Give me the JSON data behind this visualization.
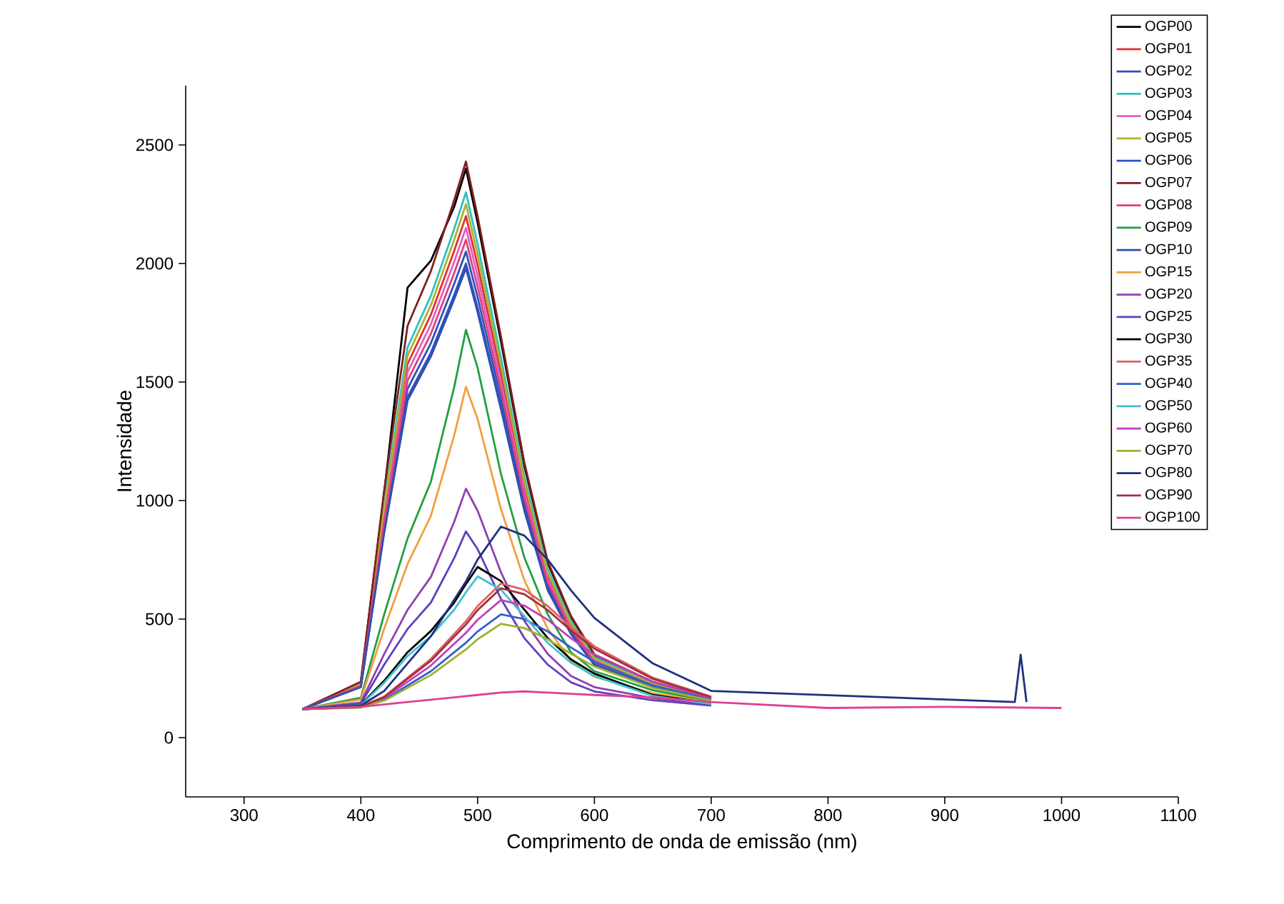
{
  "chart_data": {
    "type": "line",
    "xlabel": "Comprimento de onda de emissão (nm)",
    "ylabel": "Intensidade",
    "x": [
      350,
      400,
      420,
      440,
      460,
      480,
      490,
      500,
      520,
      540,
      560,
      580,
      600,
      650,
      700,
      800,
      900,
      960,
      965,
      970,
      1000
    ],
    "xlim": [
      250,
      1100
    ],
    "xticks": [
      300,
      400,
      500,
      600,
      700,
      800,
      900,
      1000,
      1100
    ],
    "ylim": [
      -250,
      2750
    ],
    "yticks": [
      0,
      500,
      1000,
      1500,
      2000,
      2500
    ],
    "legend": "right",
    "grid": false,
    "marker": "none",
    "series": [
      {
        "name": "OGP00",
        "color": "#000000",
        "values": [
          120,
          234,
          1032,
          1898,
          2012,
          2240,
          2400,
          2172,
          1670,
          1146,
          736,
          508,
          348,
          234,
          166,
          null,
          null,
          null,
          null,
          null,
          null
        ]
      },
      {
        "name": "OGP01",
        "color": "#e03030",
        "values": [
          120,
          224,
          952,
          1576,
          1784,
          2054,
          2200,
          1992,
          1534,
          1056,
          682,
          474,
          328,
          224,
          162,
          null,
          null,
          null,
          null,
          null,
          null
        ]
      },
      {
        "name": "OGP02",
        "color": "#3050c0",
        "values": [
          120,
          217,
          892,
          1471,
          1664,
          1915,
          2050,
          1857,
          1432,
          989,
          641,
          448,
          313,
          217,
          159,
          null,
          null,
          null,
          null,
          null,
          null
        ]
      },
      {
        "name": "OGP03",
        "color": "#30c0c0",
        "values": [
          120,
          229,
          992,
          1646,
          1864,
          2147,
          2300,
          2082,
          1602,
          1101,
          709,
          491,
          338,
          229,
          164,
          null,
          null,
          null,
          null,
          null,
          null
        ]
      },
      {
        "name": "OGP04",
        "color": "#e060c0",
        "values": [
          120,
          222,
          932,
          1541,
          1744,
          2008,
          2150,
          1947,
          1500,
          1034,
          668,
          465,
          323,
          222,
          161,
          null,
          null,
          null,
          null,
          null,
          null
        ]
      },
      {
        "name": "OGP05",
        "color": "#b0b030",
        "values": [
          120,
          227,
          972,
          1611,
          1824,
          2101,
          2250,
          2037,
          1568,
          1079,
          695,
          482,
          333,
          227,
          163,
          null,
          null,
          null,
          null,
          null,
          null
        ]
      },
      {
        "name": "OGP06",
        "color": "#3050c0",
        "values": [
          120,
          214,
          872,
          1436,
          1624,
          1868,
          2000,
          1812,
          1398,
          966,
          628,
          440,
          308,
          214,
          158,
          null,
          null,
          null,
          null,
          null,
          null
        ]
      },
      {
        "name": "OGP07",
        "color": "#802020",
        "values": [
          120,
          236,
          1044,
          1737,
          1968,
          2268,
          2430,
          2199,
          1691,
          1160,
          744,
          513,
          351,
          236,
          166,
          null,
          null,
          null,
          null,
          null,
          null
        ]
      },
      {
        "name": "OGP08",
        "color": "#e04080",
        "values": [
          120,
          219,
          912,
          1506,
          1704,
          1961,
          2100,
          1902,
          1466,
          1011,
          655,
          457,
          318,
          219,
          160,
          null,
          null,
          null,
          null,
          null,
          null
        ]
      },
      {
        "name": "OGP09",
        "color": "#20a040",
        "values": [
          120,
          168,
          520,
          840,
          1080,
          1480,
          1720,
          1560,
          1112,
          760,
          520,
          360,
          280,
          200,
          152,
          null,
          null,
          null,
          null,
          null,
          null
        ]
      },
      {
        "name": "OGP10",
        "color": "#3050b0",
        "values": [
          120,
          213,
          864,
          1422,
          1608,
          1850,
          1980,
          1794,
          1385,
          957,
          622,
          436,
          306,
          213,
          157,
          null,
          null,
          null,
          null,
          null,
          null
        ]
      },
      {
        "name": "OGP15",
        "color": "#f0a040",
        "values": [
          120,
          161,
          460,
          732,
          936,
          1276,
          1480,
          1344,
          963,
          664,
          460,
          324,
          256,
          188,
          147,
          null,
          null,
          null,
          null,
          null,
          null
        ]
      },
      {
        "name": "OGP20",
        "color": "#9040b0",
        "values": [
          120,
          148,
          353,
          539,
          678,
          911,
          1050,
          957,
          697,
          492,
          353,
          260,
          213,
          167,
          139,
          null,
          null,
          null,
          null,
          null,
          null
        ]
      },
      {
        "name": "OGP25",
        "color": "#6040c0",
        "values": [
          120,
          143,
          308,
          458,
          570,
          758,
          870,
          795,
          585,
          420,
          308,
          233,
          195,
          158,
          135,
          null,
          null,
          null,
          null,
          null,
          null
        ]
      },
      {
        "name": "OGP30",
        "color": "#000000",
        "values": [
          120,
          138,
          240,
          360,
          450,
          570,
          648,
          720,
          660,
          540,
          420,
          330,
          270,
          180,
          144,
          null,
          null,
          null,
          null,
          null,
          null
        ]
      },
      {
        "name": "OGP35",
        "color": "#e06060",
        "values": [
          120,
          131,
          173,
          253,
          332,
          438,
          491,
          555,
          650,
          624,
          555,
          465,
          385,
          253,
          173,
          null,
          null,
          null,
          null,
          null,
          null
        ]
      },
      {
        "name": "OGP40",
        "color": "#3060d0",
        "values": [
          120,
          128,
          160,
          220,
          280,
          360,
          400,
          448,
          520,
          500,
          448,
          380,
          320,
          220,
          160,
          null,
          null,
          null,
          null,
          null,
          null
        ]
      },
      {
        "name": "OGP50",
        "color": "#40c0d0",
        "values": [
          120,
          137,
          232,
          344,
          428,
          540,
          613,
          680,
          624,
          512,
          400,
          316,
          260,
          176,
          142,
          null,
          null,
          null,
          null,
          null,
          null
        ]
      },
      {
        "name": "OGP60",
        "color": "#c040c0",
        "values": [
          120,
          129,
          166,
          235,
          304,
          396,
          442,
          497,
          580,
          557,
          497,
          419,
          350,
          235,
          166,
          null,
          null,
          null,
          null,
          null,
          null
        ]
      },
      {
        "name": "OGP70",
        "color": "#a0b030",
        "values": [
          120,
          127,
          156,
          210,
          264,
          336,
          372,
          415,
          480,
          462,
          415,
          354,
          300,
          210,
          156,
          null,
          null,
          null,
          null,
          null,
          null
        ]
      },
      {
        "name": "OGP80",
        "color": "#203080",
        "values": [
          120,
          135,
          197,
          313,
          428,
          582,
          659,
          751,
          890,
          852,
          751,
          621,
          505,
          313,
          197,
          null,
          null,
          150,
          350,
          150,
          null
        ]
      },
      {
        "name": "OGP90",
        "color": "#a03040",
        "values": [
          120,
          130,
          171,
          248,
          324,
          426,
          477,
          538,
          630,
          605,
          538,
          452,
          375,
          248,
          171,
          null,
          null,
          null,
          null,
          null,
          null
        ]
      },
      {
        "name": "OGP100",
        "color": "#e04090",
        "values": [
          120,
          130,
          140,
          150,
          160,
          170,
          175,
          180,
          190,
          195,
          190,
          185,
          180,
          170,
          150,
          125,
          130,
          null,
          null,
          null,
          125
        ]
      }
    ]
  }
}
